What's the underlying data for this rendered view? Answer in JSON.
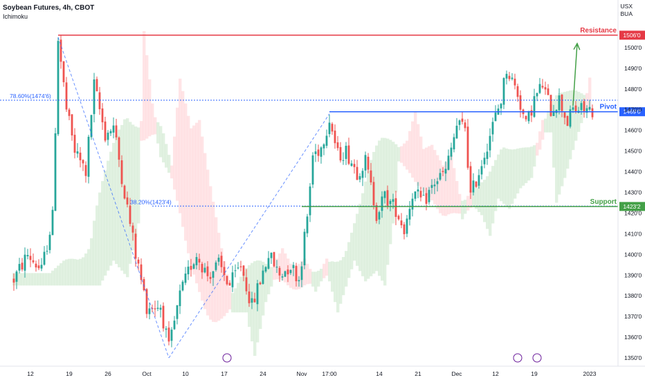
{
  "header": {
    "title": "Soybean Futures, 4h, CBOT",
    "indicator": "Ichimoku"
  },
  "currency": {
    "line1": "USX",
    "line2": "BUA"
  },
  "colors": {
    "up": "#26a69a",
    "down": "#ef5350",
    "resistance": "#e53945",
    "pivot": "#2962ff",
    "support": "#43a047",
    "fib": "#2962ff",
    "cloud_bull": "#c8e6c9",
    "cloud_bear": "#ffcdd2",
    "arrow": "#43a047"
  },
  "chart_data": {
    "type": "candlestick",
    "title": "Soybean Futures, 4h, CBOT",
    "ylim": [
      1346,
      1517
    ],
    "y_ticks": [
      "1350'0",
      "1360'0",
      "1370'0",
      "1380'0",
      "1390'0",
      "1400'0",
      "1410'0",
      "1420'0",
      "1430'0",
      "1440'0",
      "1450'0",
      "1460'0",
      "1470'0",
      "1480'0",
      "1490'0",
      "1500'0"
    ],
    "y_tick_values": [
      1350,
      1360,
      1370,
      1380,
      1390,
      1400,
      1410,
      1420,
      1430,
      1440,
      1450,
      1460,
      1470,
      1480,
      1490,
      1500
    ],
    "x_ticks": [
      "12",
      "19",
      "26",
      "Oct",
      "10",
      "17",
      "24",
      "Nov",
      "17:00",
      "14",
      "21",
      "Dec",
      "12",
      "19",
      "2023"
    ],
    "x_tick_index": [
      6,
      20,
      34,
      48,
      62,
      76,
      90,
      104,
      114,
      132,
      146,
      160,
      174,
      188,
      208
    ],
    "n_bars": 210,
    "levels": [
      {
        "name": "Resistance",
        "value": 1506.0,
        "label": "1506'0"
      },
      {
        "name": "Pivot",
        "value": 1469.0,
        "label": "1469'0"
      },
      {
        "name": "Support",
        "value": 1423.2,
        "label": "1423'2"
      }
    ],
    "fib_levels": [
      {
        "label": "78.60%(1474'6)",
        "value": 1474.6
      },
      {
        "label": "38.20%(1423'4)",
        "value": 1423.4
      }
    ],
    "last_price": 1469.0,
    "anchors": [
      [
        0,
        1388
      ],
      [
        5,
        1400
      ],
      [
        10,
        1392
      ],
      [
        14,
        1418
      ],
      [
        16,
        1505
      ],
      [
        19,
        1470
      ],
      [
        22,
        1450
      ],
      [
        26,
        1440
      ],
      [
        29,
        1482
      ],
      [
        33,
        1458
      ],
      [
        36,
        1462
      ],
      [
        40,
        1430
      ],
      [
        44,
        1400
      ],
      [
        48,
        1375
      ],
      [
        53,
        1375
      ],
      [
        56,
        1354
      ],
      [
        60,
        1380
      ],
      [
        64,
        1395
      ],
      [
        66,
        1400
      ],
      [
        70,
        1390
      ],
      [
        74,
        1395
      ],
      [
        78,
        1385
      ],
      [
        82,
        1395
      ],
      [
        86,
        1375
      ],
      [
        92,
        1400
      ],
      [
        96,
        1390
      ],
      [
        100,
        1395
      ],
      [
        103,
        1388
      ],
      [
        106,
        1418
      ],
      [
        108,
        1448
      ],
      [
        111,
        1452
      ],
      [
        114,
        1466
      ],
      [
        117,
        1448
      ],
      [
        120,
        1450
      ],
      [
        124,
        1440
      ],
      [
        127,
        1445
      ],
      [
        131,
        1420
      ],
      [
        134,
        1428
      ],
      [
        138,
        1422
      ],
      [
        141,
        1412
      ],
      [
        144,
        1430
      ],
      [
        148,
        1425
      ],
      [
        152,
        1435
      ],
      [
        156,
        1440
      ],
      [
        160,
        1462
      ],
      [
        163,
        1462
      ],
      [
        165,
        1428
      ],
      [
        168,
        1440
      ],
      [
        172,
        1458
      ],
      [
        176,
        1475
      ],
      [
        178,
        1490
      ],
      [
        182,
        1478
      ],
      [
        185,
        1462
      ],
      [
        188,
        1475
      ],
      [
        191,
        1482
      ],
      [
        194,
        1470
      ],
      [
        197,
        1475
      ],
      [
        200,
        1464
      ],
      [
        202,
        1470
      ]
    ],
    "annotations": [
      "Resistance",
      "Pivot",
      "Support",
      "78.60%(1474'6)",
      "38.20%(1423'4)"
    ]
  }
}
